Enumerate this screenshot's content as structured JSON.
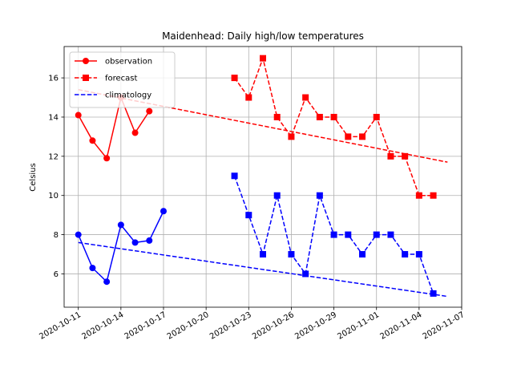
{
  "chart_data": {
    "type": "line",
    "title": "Maidenhead: Daily high/low temperatures",
    "xlabel": "",
    "ylabel": "Celsius",
    "x_type": "date",
    "xlim": [
      "2020-10-10",
      "2020-11-07"
    ],
    "ylim": [
      4.3,
      17.6
    ],
    "x_ticks": [
      "2020-10-11",
      "2020-10-14",
      "2020-10-17",
      "2020-10-20",
      "2020-10-23",
      "2020-10-26",
      "2020-10-29",
      "2020-11-01",
      "2020-11-04",
      "2020-11-07"
    ],
    "y_ticks": [
      6,
      8,
      10,
      12,
      14,
      16
    ],
    "grid": true,
    "legend_position": "top-left",
    "colors": {
      "high": "#ff0000",
      "low": "#0000ff"
    },
    "legend": [
      {
        "label": "observation",
        "style": "solid",
        "marker": "circle"
      },
      {
        "label": "forecast",
        "style": "dashed",
        "marker": "square"
      },
      {
        "label": "climatology",
        "style": "dashed",
        "marker": "none"
      }
    ],
    "series": [
      {
        "kind": "observation",
        "temp": "high",
        "color": "#ff0000",
        "style": "solid",
        "marker": "circle",
        "points": [
          [
            "2020-10-11",
            14.1
          ],
          [
            "2020-10-12",
            12.8
          ],
          [
            "2020-10-13",
            11.9
          ],
          [
            "2020-10-14",
            15.0
          ],
          [
            "2020-10-15",
            13.2
          ],
          [
            "2020-10-16",
            14.3
          ]
        ]
      },
      {
        "kind": "observation",
        "temp": "low",
        "color": "#0000ff",
        "style": "solid",
        "marker": "circle",
        "points": [
          [
            "2020-10-11",
            8.0
          ],
          [
            "2020-10-12",
            6.3
          ],
          [
            "2020-10-13",
            5.6
          ],
          [
            "2020-10-14",
            8.5
          ],
          [
            "2020-10-15",
            7.6
          ],
          [
            "2020-10-16",
            7.7
          ],
          [
            "2020-10-17",
            9.2
          ]
        ]
      },
      {
        "kind": "forecast",
        "temp": "high",
        "color": "#ff0000",
        "style": "dashed",
        "marker": "square",
        "points": [
          [
            "2020-10-22",
            16
          ],
          [
            "2020-10-23",
            15
          ],
          [
            "2020-10-24",
            17
          ],
          [
            "2020-10-25",
            14
          ],
          [
            "2020-10-26",
            13
          ],
          [
            "2020-10-27",
            15
          ],
          [
            "2020-10-28",
            14
          ],
          [
            "2020-10-29",
            14
          ],
          [
            "2020-10-30",
            13
          ],
          [
            "2020-10-31",
            13
          ],
          [
            "2020-11-01",
            14
          ],
          [
            "2020-11-02",
            12
          ],
          [
            "2020-11-03",
            12
          ],
          [
            "2020-11-04",
            10
          ],
          [
            "2020-11-05",
            10
          ]
        ]
      },
      {
        "kind": "forecast",
        "temp": "low",
        "color": "#0000ff",
        "style": "dashed",
        "marker": "square",
        "points": [
          [
            "2020-10-22",
            11
          ],
          [
            "2020-10-23",
            9
          ],
          [
            "2020-10-24",
            7
          ],
          [
            "2020-10-25",
            10
          ],
          [
            "2020-10-26",
            7
          ],
          [
            "2020-10-27",
            6
          ],
          [
            "2020-10-28",
            10
          ],
          [
            "2020-10-29",
            8
          ],
          [
            "2020-10-30",
            8
          ],
          [
            "2020-10-31",
            7
          ],
          [
            "2020-11-01",
            8
          ],
          [
            "2020-11-02",
            8
          ],
          [
            "2020-11-03",
            7
          ],
          [
            "2020-11-04",
            7
          ],
          [
            "2020-11-05",
            5
          ]
        ]
      },
      {
        "kind": "climatology",
        "temp": "high",
        "color": "#ff0000",
        "style": "dashed",
        "marker": "none",
        "points": [
          [
            "2020-10-11",
            15.4
          ],
          [
            "2020-11-06",
            11.7
          ]
        ]
      },
      {
        "kind": "climatology",
        "temp": "low",
        "color": "#0000ff",
        "style": "dashed",
        "marker": "none",
        "points": [
          [
            "2020-10-11",
            7.6
          ],
          [
            "2020-11-06",
            4.85
          ]
        ]
      }
    ]
  }
}
